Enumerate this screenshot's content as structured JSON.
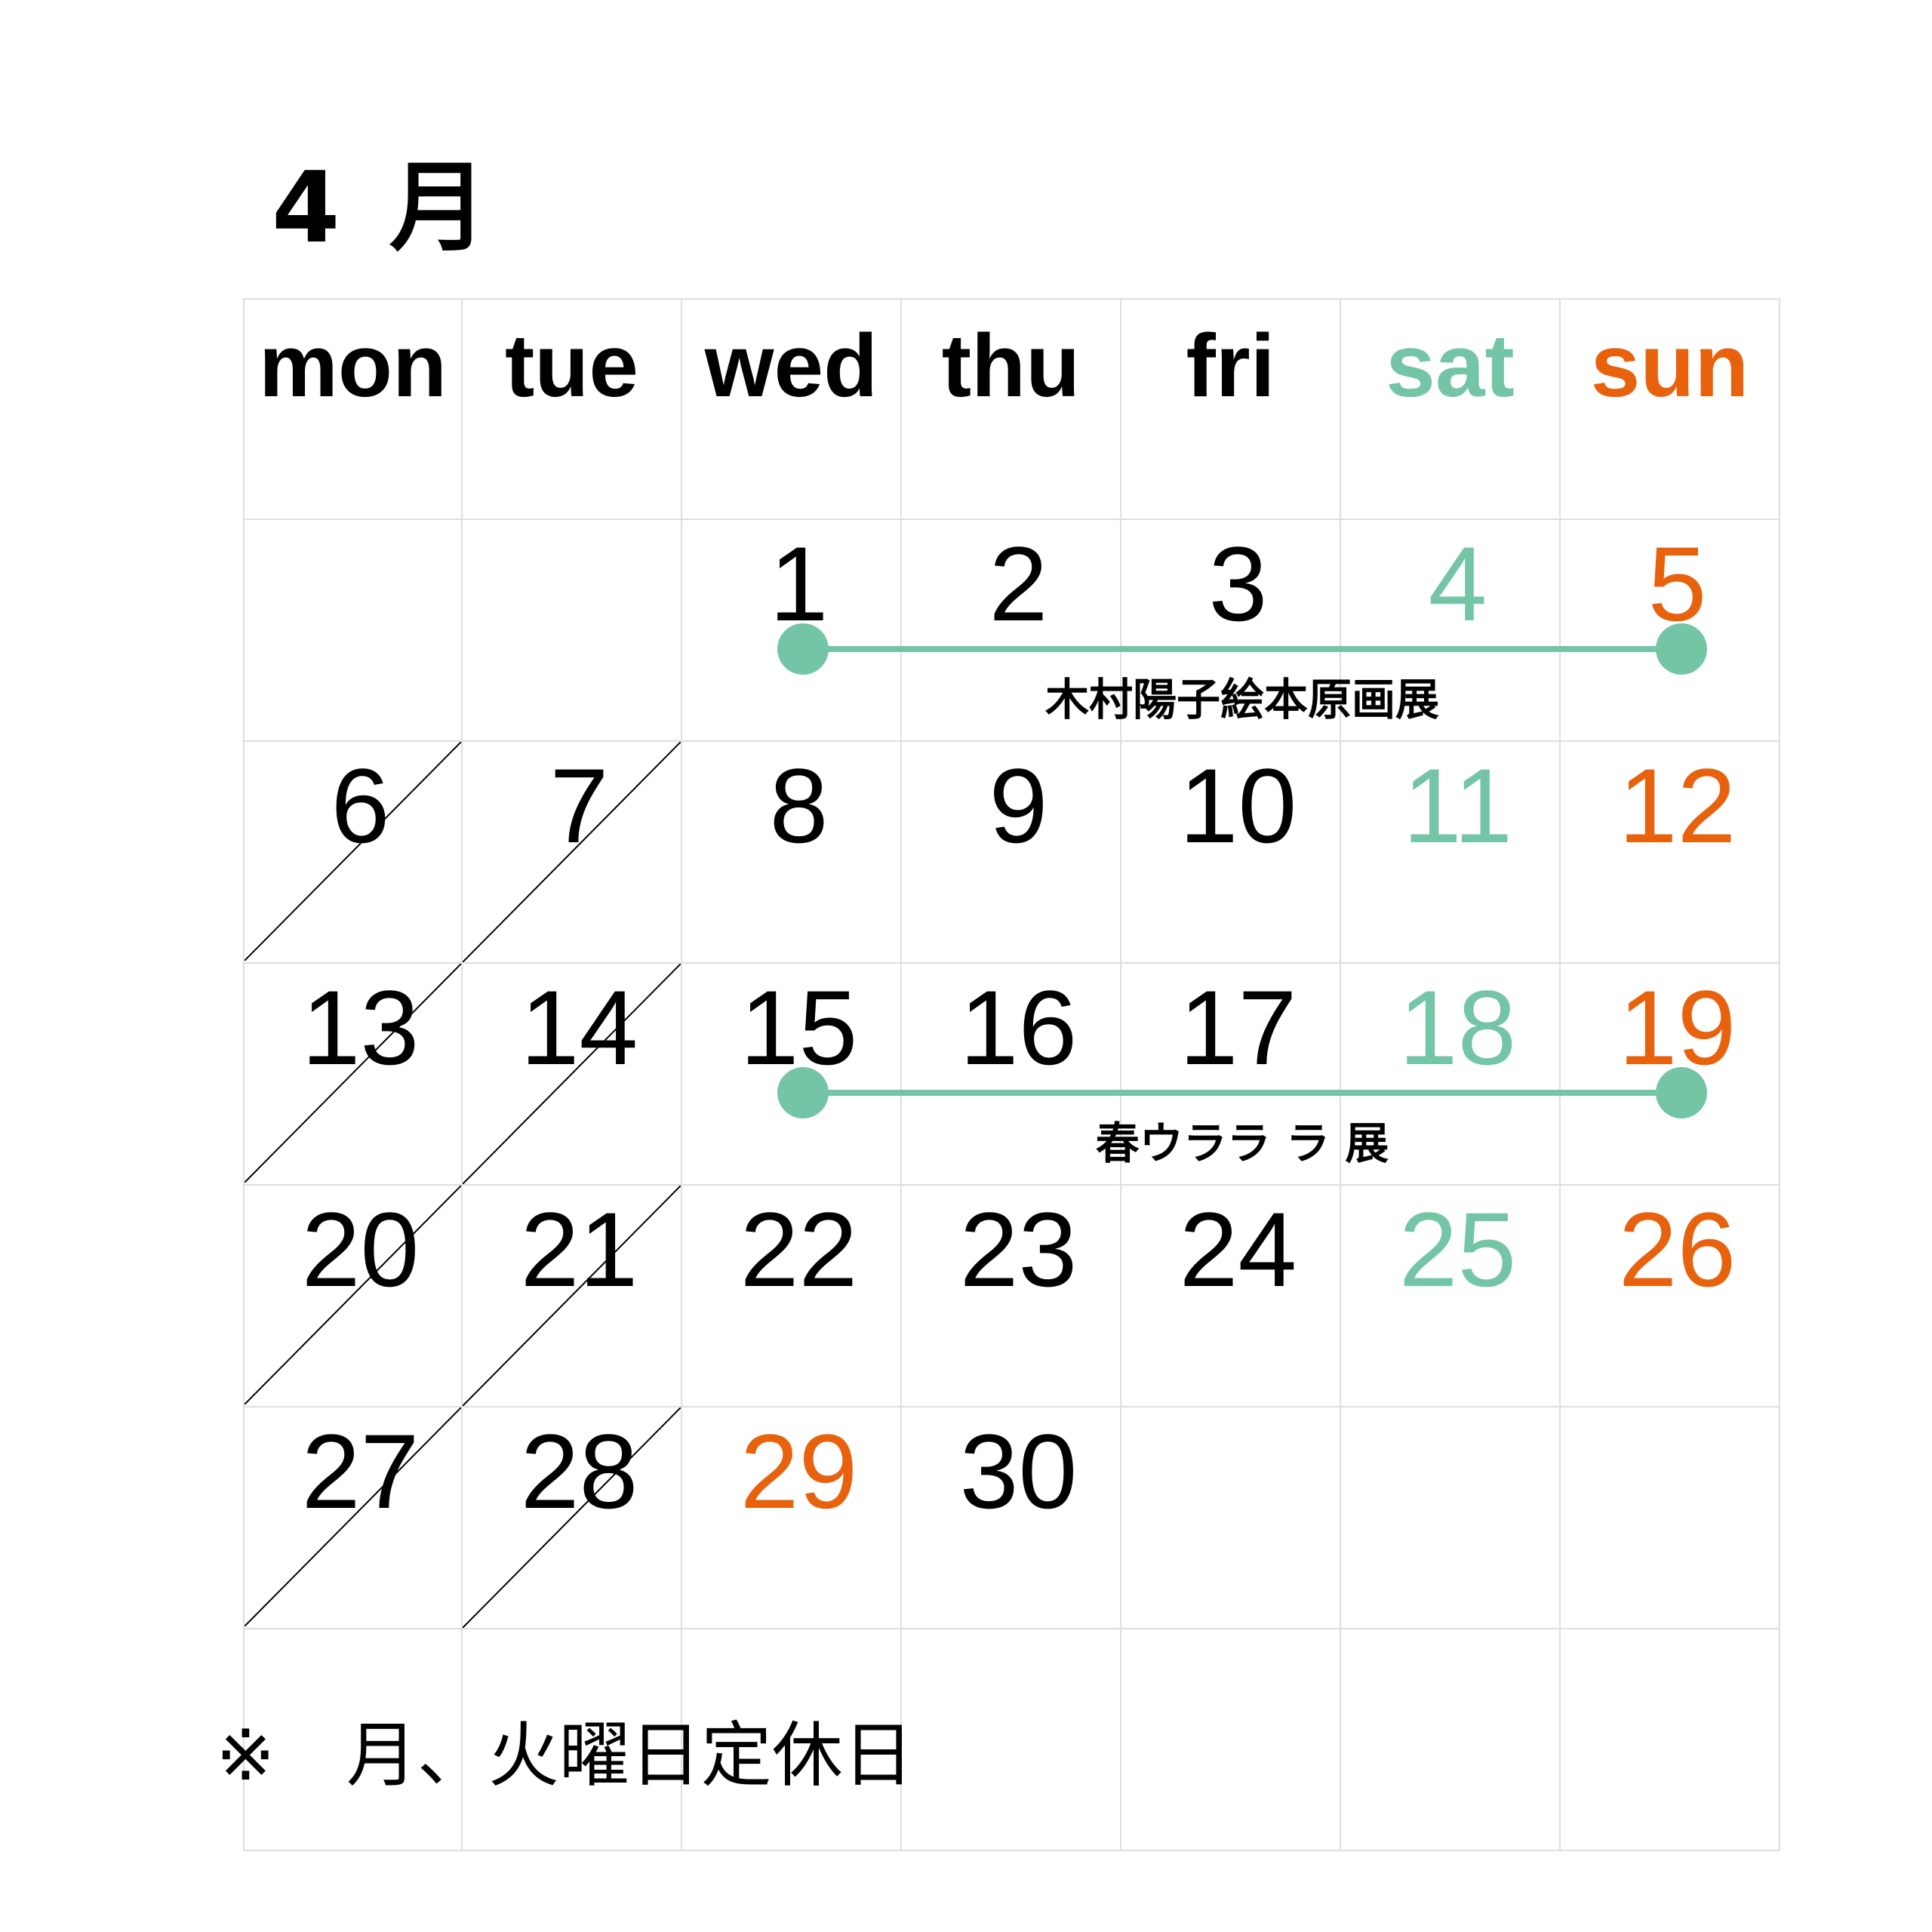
{
  "title": "4 月",
  "colors": {
    "saturday": "#74c5a6",
    "sunday": "#e8620e",
    "weekday": "#000000",
    "event": "#74c5a6"
  },
  "weekdays": [
    {
      "label": "mon",
      "type": "weekday"
    },
    {
      "label": "tue",
      "type": "weekday"
    },
    {
      "label": "wed",
      "type": "weekday"
    },
    {
      "label": "thu",
      "type": "weekday"
    },
    {
      "label": "fri",
      "type": "weekday"
    },
    {
      "label": "sat",
      "type": "saturday"
    },
    {
      "label": "sun",
      "type": "sunday"
    }
  ],
  "weeks": [
    [
      null,
      null,
      {
        "d": "1"
      },
      {
        "d": "2"
      },
      {
        "d": "3"
      },
      {
        "d": "4",
        "t": "saturday"
      },
      {
        "d": "5",
        "t": "sunday"
      }
    ],
    [
      {
        "d": "6",
        "closed": true
      },
      {
        "d": "7",
        "closed": true
      },
      {
        "d": "8"
      },
      {
        "d": "9"
      },
      {
        "d": "10"
      },
      {
        "d": "11",
        "t": "saturday"
      },
      {
        "d": "12",
        "t": "sunday"
      }
    ],
    [
      {
        "d": "13",
        "closed": true
      },
      {
        "d": "14",
        "closed": true
      },
      {
        "d": "15"
      },
      {
        "d": "16"
      },
      {
        "d": "17"
      },
      {
        "d": "18",
        "t": "saturday"
      },
      {
        "d": "19",
        "t": "sunday"
      }
    ],
    [
      {
        "d": "20",
        "closed": true
      },
      {
        "d": "21",
        "closed": true
      },
      {
        "d": "22"
      },
      {
        "d": "23"
      },
      {
        "d": "24"
      },
      {
        "d": "25",
        "t": "saturday"
      },
      {
        "d": "26",
        "t": "sunday"
      }
    ],
    [
      {
        "d": "27",
        "closed": true
      },
      {
        "d": "28",
        "closed": true
      },
      {
        "d": "29",
        "t": "sunday"
      },
      {
        "d": "30"
      },
      null,
      null,
      null
    ],
    [
      null,
      null,
      null,
      null,
      null,
      null,
      null
    ]
  ],
  "events": [
    {
      "label": "木村陽子絵本原画展",
      "start": "1",
      "end": "5"
    },
    {
      "label": "春ウララ ラ 展",
      "start": "15",
      "end": "19"
    }
  ],
  "note": "※　月、火曜日定休日"
}
